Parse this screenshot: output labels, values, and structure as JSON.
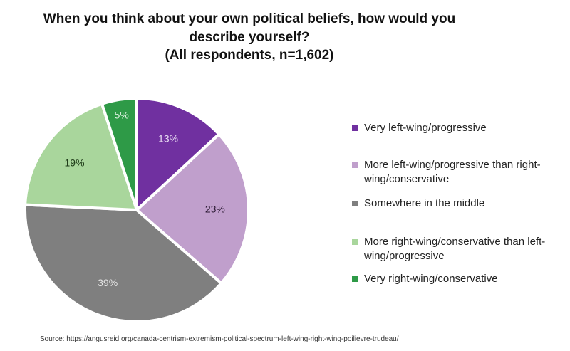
{
  "chart_data": {
    "type": "pie",
    "title": "When you think about your own political beliefs, how would you describe yourself?",
    "subtitle": "(All respondents, n=1,602)",
    "slices": [
      {
        "label": "Very left-wing/progressive",
        "value": 13,
        "data_label": "13%",
        "color": "#7030a0",
        "label_color": "#e8dcf2"
      },
      {
        "label": "More left-wing/progressive than right-wing/conservative",
        "value": 23,
        "data_label": "23%",
        "color": "#c09fcc",
        "label_color": "#2b1a33"
      },
      {
        "label": "Somewhere in the middle",
        "value": 39,
        "data_label": "39%",
        "color": "#7f7f7f",
        "label_color": "#e6e6e6"
      },
      {
        "label": "More right-wing/conservative than left-wing/progressive",
        "value": 19,
        "data_label": "19%",
        "color": "#a9d69c",
        "label_color": "#1d3a17"
      },
      {
        "label": "Very right-wing/conservative",
        "value": 5,
        "data_label": "5%",
        "color": "#2e9a47",
        "label_color": "#e0f2e3"
      }
    ],
    "start": "top",
    "direction": "clockwise",
    "legend_position": "right"
  },
  "source": "Source:  https://angusreid.org/canada-centrism-extremism-political-spectrum-left-wing-right-wing-poilievre-trudeau/"
}
